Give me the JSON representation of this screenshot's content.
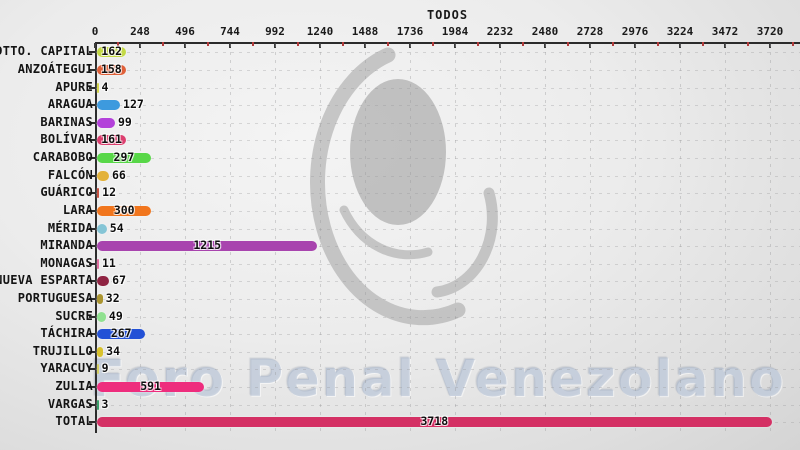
{
  "watermark": {
    "text": "Foro Penal Venezolano",
    "logo_icon": "foro-penal-logo"
  },
  "chart_data": {
    "type": "bar",
    "orientation": "horizontal",
    "title": "TODOS",
    "categories": [
      "DTTO. CAPITAL",
      "ANZOÁTEGUI",
      "APURE",
      "ARAGUA",
      "BARINAS",
      "BOLÍVAR",
      "CARABOBO",
      "FALCÓN",
      "GUÁRICO",
      "LARA",
      "MÉRIDA",
      "MIRANDA",
      "MONAGAS",
      "NUEVA ESPARTA",
      "PORTUGUESA",
      "SUCRE",
      "TÁCHIRA",
      "TRUJILLO",
      "YARACUY",
      "ZULIA",
      "VARGAS",
      "TOTAL"
    ],
    "values": [
      162,
      158,
      4,
      127,
      99,
      161,
      297,
      66,
      12,
      300,
      54,
      1215,
      11,
      67,
      32,
      49,
      267,
      34,
      9,
      591,
      3,
      3718
    ],
    "colors": [
      "#c3d944",
      "#df6039",
      "#d6d64e",
      "#3d9ade",
      "#b341da",
      "#dc3f6f",
      "#58d748",
      "#e3b23a",
      "#c65040",
      "#f1761e",
      "#85c5d6",
      "#a844ae",
      "#e06fa0",
      "#8f2342",
      "#ab9530",
      "#90e190",
      "#2351d6",
      "#d9c22c",
      "#d6cf63",
      "#ee2d7d",
      "#3aa06b",
      "#d43064"
    ],
    "x_ticks": [
      0,
      248,
      496,
      744,
      992,
      1240,
      1488,
      1736,
      1984,
      2232,
      2480,
      2728,
      2976,
      3224,
      3472,
      3720
    ],
    "x_minor_tick_interval": 124,
    "xlim": [
      0,
      3880
    ],
    "axis_position": "top",
    "grid": "dashed",
    "value_labels": "shown",
    "axis_tick_color": "#b23b3b",
    "watermark_gray": "#a8a8a8"
  }
}
